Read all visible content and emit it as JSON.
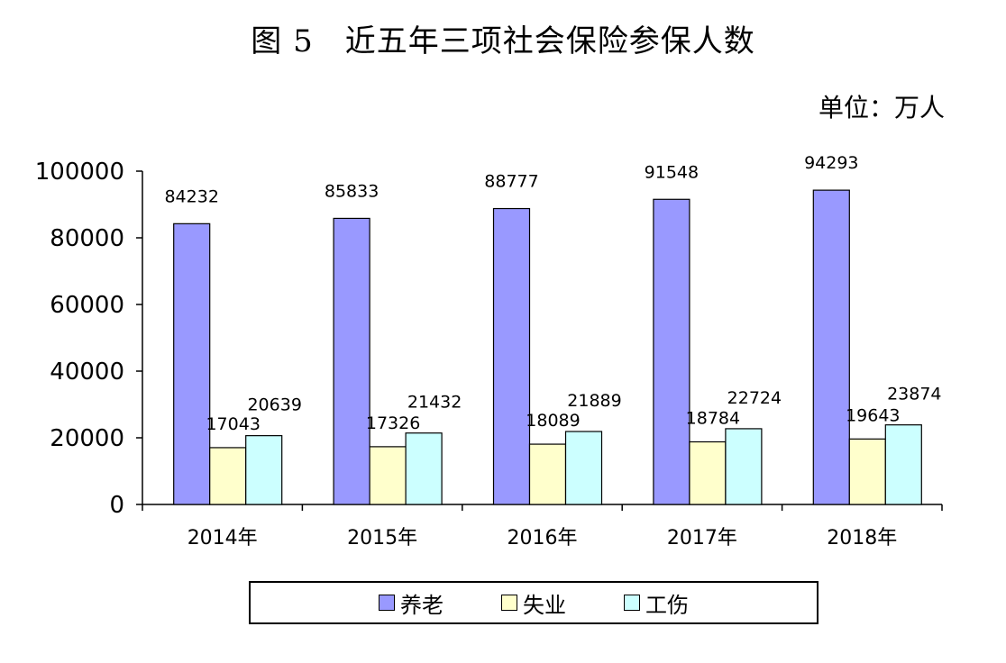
{
  "title": "图 5　近五年三项社会保险参保人数",
  "unit": "单位：万人",
  "colors": {
    "pension": "#9999FF",
    "unemployment": "#FFFFCC",
    "injury": "#CCFFFF"
  },
  "chart_data": {
    "type": "bar",
    "title": "图 5　近五年三项社会保险参保人数",
    "xlabel": "",
    "ylabel": "",
    "ylim": [
      0,
      100000
    ],
    "yticks": [
      "0",
      "20000",
      "40000",
      "60000",
      "80000",
      "100000"
    ],
    "ytick_values": [
      0,
      20000,
      40000,
      60000,
      80000,
      100000
    ],
    "grid": false,
    "legend_position": "bottom",
    "categories": [
      "2014年",
      "2015年",
      "2016年",
      "2017年",
      "2018年"
    ],
    "series": [
      {
        "name": "养老",
        "values": [
          84232,
          85833,
          88777,
          91548,
          94293
        ]
      },
      {
        "name": "失业",
        "values": [
          17043,
          17326,
          18089,
          18784,
          19643
        ]
      },
      {
        "name": "工伤",
        "values": [
          20639,
          21432,
          21889,
          22724,
          23874
        ]
      }
    ]
  }
}
